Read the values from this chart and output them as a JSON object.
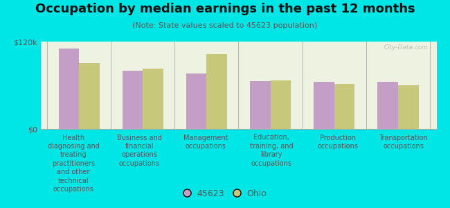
{
  "title": "Occupation by median earnings in the past 12 months",
  "subtitle": "(Note: State values scaled to 45623 population)",
  "categories": [
    "Health\ndiagnosing and\ntreating\npractitioners\nand other\ntechnical\noccupations",
    "Business and\nfinancial\noperations\noccupations",
    "Management\noccupations",
    "Education,\ntraining, and\nlibrary\noccupations",
    "Production\noccupations",
    "Transportation\noccupations"
  ],
  "values_45623": [
    110000,
    80000,
    76000,
    66000,
    65000,
    65000
  ],
  "values_ohio": [
    90000,
    83000,
    103000,
    67000,
    62000,
    60000
  ],
  "color_45623": "#c49ec4",
  "color_ohio": "#c8c87a",
  "ylim": [
    0,
    120000
  ],
  "ytick_labels": [
    "$0",
    "$120k"
  ],
  "legend_45623": "45623",
  "legend_ohio": "Ohio",
  "background_color": "#00e5e5",
  "plot_bg": "#eef2e0",
  "watermark": "City-Data.com",
  "title_fontsize": 13,
  "subtitle_fontsize": 8,
  "tick_label_fontsize": 7,
  "ytick_fontsize": 8
}
